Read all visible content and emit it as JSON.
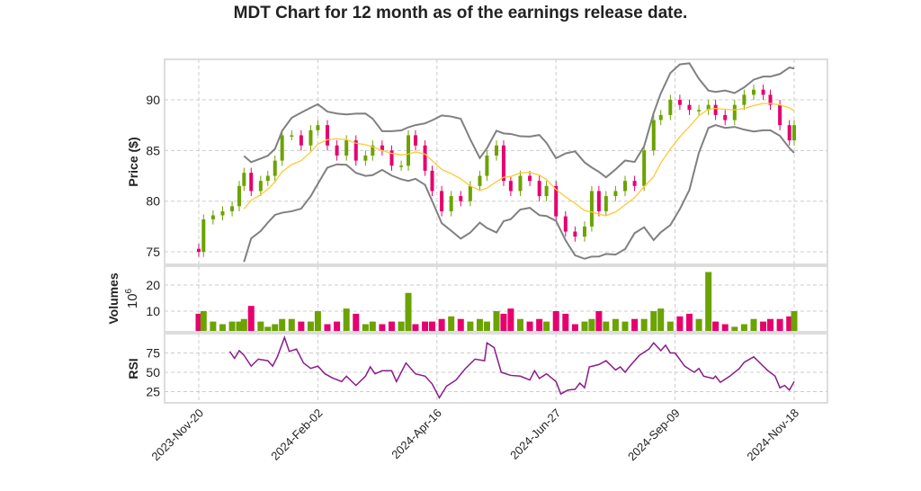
{
  "chart_data": {
    "type": "candlestick",
    "title": "MDT Chart for 12 month as of the earnings release date.",
    "x_unit": "trading day index",
    "xticks": {
      "values": [
        0,
        50,
        100,
        150,
        200,
        250
      ],
      "labels": [
        "2023-Nov-20",
        "2024-Feb-02",
        "2024-Apr-16",
        "2024-Jun-27",
        "2024-Sep-09",
        "2024-Nov-18"
      ]
    },
    "price": {
      "ylabel": "Price ($)",
      "ylim": [
        73.5,
        94
      ],
      "yticks": [
        75,
        80,
        85,
        90
      ],
      "days": [
        0,
        2,
        6,
        10,
        14,
        17,
        19,
        22,
        26,
        29,
        32,
        35,
        39,
        43,
        47,
        50,
        54,
        58,
        62,
        66,
        70,
        73,
        77,
        81,
        85,
        88,
        91,
        95,
        98,
        102,
        106,
        110,
        114,
        118,
        121,
        125,
        128,
        131,
        135,
        139,
        143,
        146,
        150,
        154,
        158,
        162,
        165,
        168,
        171,
        175,
        179,
        183,
        187,
        191,
        194,
        198,
        202,
        206,
        210,
        214,
        217,
        221,
        225,
        229,
        233,
        237,
        240,
        244,
        248,
        250
      ],
      "close": [
        75.0,
        78.2,
        78.6,
        79.0,
        79.5,
        81.5,
        82.8,
        81.0,
        82.0,
        82.5,
        84.0,
        86.5,
        86.5,
        85.5,
        87.0,
        87.5,
        85.5,
        84.5,
        86.0,
        84.0,
        84.5,
        85.5,
        85.0,
        83.5,
        83.5,
        86.5,
        85.5,
        83.0,
        81.0,
        79.0,
        80.5,
        80.0,
        81.5,
        82.5,
        84.5,
        85.5,
        82.0,
        81.0,
        82.5,
        82.0,
        80.5,
        81.5,
        78.5,
        77.0,
        76.5,
        77.5,
        81.0,
        79.0,
        80.5,
        81.0,
        82.0,
        81.5,
        85.0,
        88.0,
        88.5,
        90.0,
        89.5,
        89.0,
        89.0,
        89.5,
        88.5,
        88.0,
        89.5,
        90.5,
        91.0,
        90.5,
        89.5,
        87.5,
        86.0,
        87.5
      ],
      "volume": [
        9,
        10,
        6,
        5,
        6,
        6,
        7,
        12,
        6,
        4,
        5,
        7,
        7,
        6,
        6,
        10,
        5,
        6,
        11,
        9,
        5,
        6,
        5,
        6,
        6,
        17,
        5,
        6,
        6,
        7,
        8,
        7,
        6,
        7,
        6,
        10,
        9,
        11,
        7,
        6,
        7,
        6,
        10,
        9,
        5,
        6,
        7,
        10,
        6,
        7,
        6,
        7,
        7,
        10,
        11,
        6,
        8,
        9,
        7,
        25,
        6,
        5,
        4,
        5,
        7,
        6,
        7,
        7,
        8,
        10
      ],
      "volume_label": "Volumes",
      "volume_exponent": "10",
      "volume_exponent_power": "6",
      "volume_yticks": [
        10,
        20
      ],
      "volume_ylim": [
        2.5,
        28
      ],
      "overlays": [
        "SMA 20",
        "Bollinger upper",
        "Bollinger lower"
      ]
    },
    "rsi": {
      "ylabel": "RSI",
      "ylim": [
        12,
        100
      ],
      "yticks": [
        25,
        50,
        75
      ],
      "days": [
        13,
        15,
        17,
        19,
        22,
        25,
        29,
        31,
        33,
        36,
        38,
        41,
        44,
        47,
        50,
        53,
        56,
        60,
        62,
        66,
        70,
        72,
        74,
        77,
        81,
        83,
        87,
        91,
        95,
        98,
        101,
        104,
        108,
        112,
        116,
        120,
        121,
        124,
        127,
        131,
        135,
        139,
        141,
        143,
        146,
        150,
        152,
        155,
        158,
        160,
        162,
        164,
        168,
        171,
        175,
        177,
        179,
        181,
        185,
        189,
        191,
        194,
        196,
        198,
        200,
        204,
        208,
        210,
        212,
        216,
        217,
        219,
        223,
        227,
        229,
        233,
        237,
        239,
        242,
        244,
        246,
        248,
        250
      ],
      "values": [
        77,
        68,
        78,
        72,
        58,
        67,
        65,
        58,
        70,
        95,
        77,
        80,
        62,
        55,
        58,
        48,
        43,
        38,
        45,
        33,
        45,
        57,
        48,
        52,
        52,
        38,
        62,
        48,
        45,
        35,
        17,
        32,
        40,
        55,
        67,
        65,
        88,
        82,
        50,
        46,
        45,
        40,
        52,
        42,
        48,
        38,
        22,
        27,
        28,
        36,
        30,
        57,
        60,
        65,
        53,
        57,
        50,
        58,
        72,
        80,
        88,
        78,
        85,
        75,
        75,
        58,
        50,
        55,
        45,
        42,
        45,
        37,
        45,
        55,
        63,
        70,
        58,
        52,
        45,
        30,
        33,
        27,
        38
      ]
    }
  },
  "colors": {
    "up": "#6ba300",
    "down": "#e6006e",
    "sma": "#ffc933",
    "band": "#808080",
    "rsi": "#8b1a8b",
    "grid": "#cccccc"
  }
}
